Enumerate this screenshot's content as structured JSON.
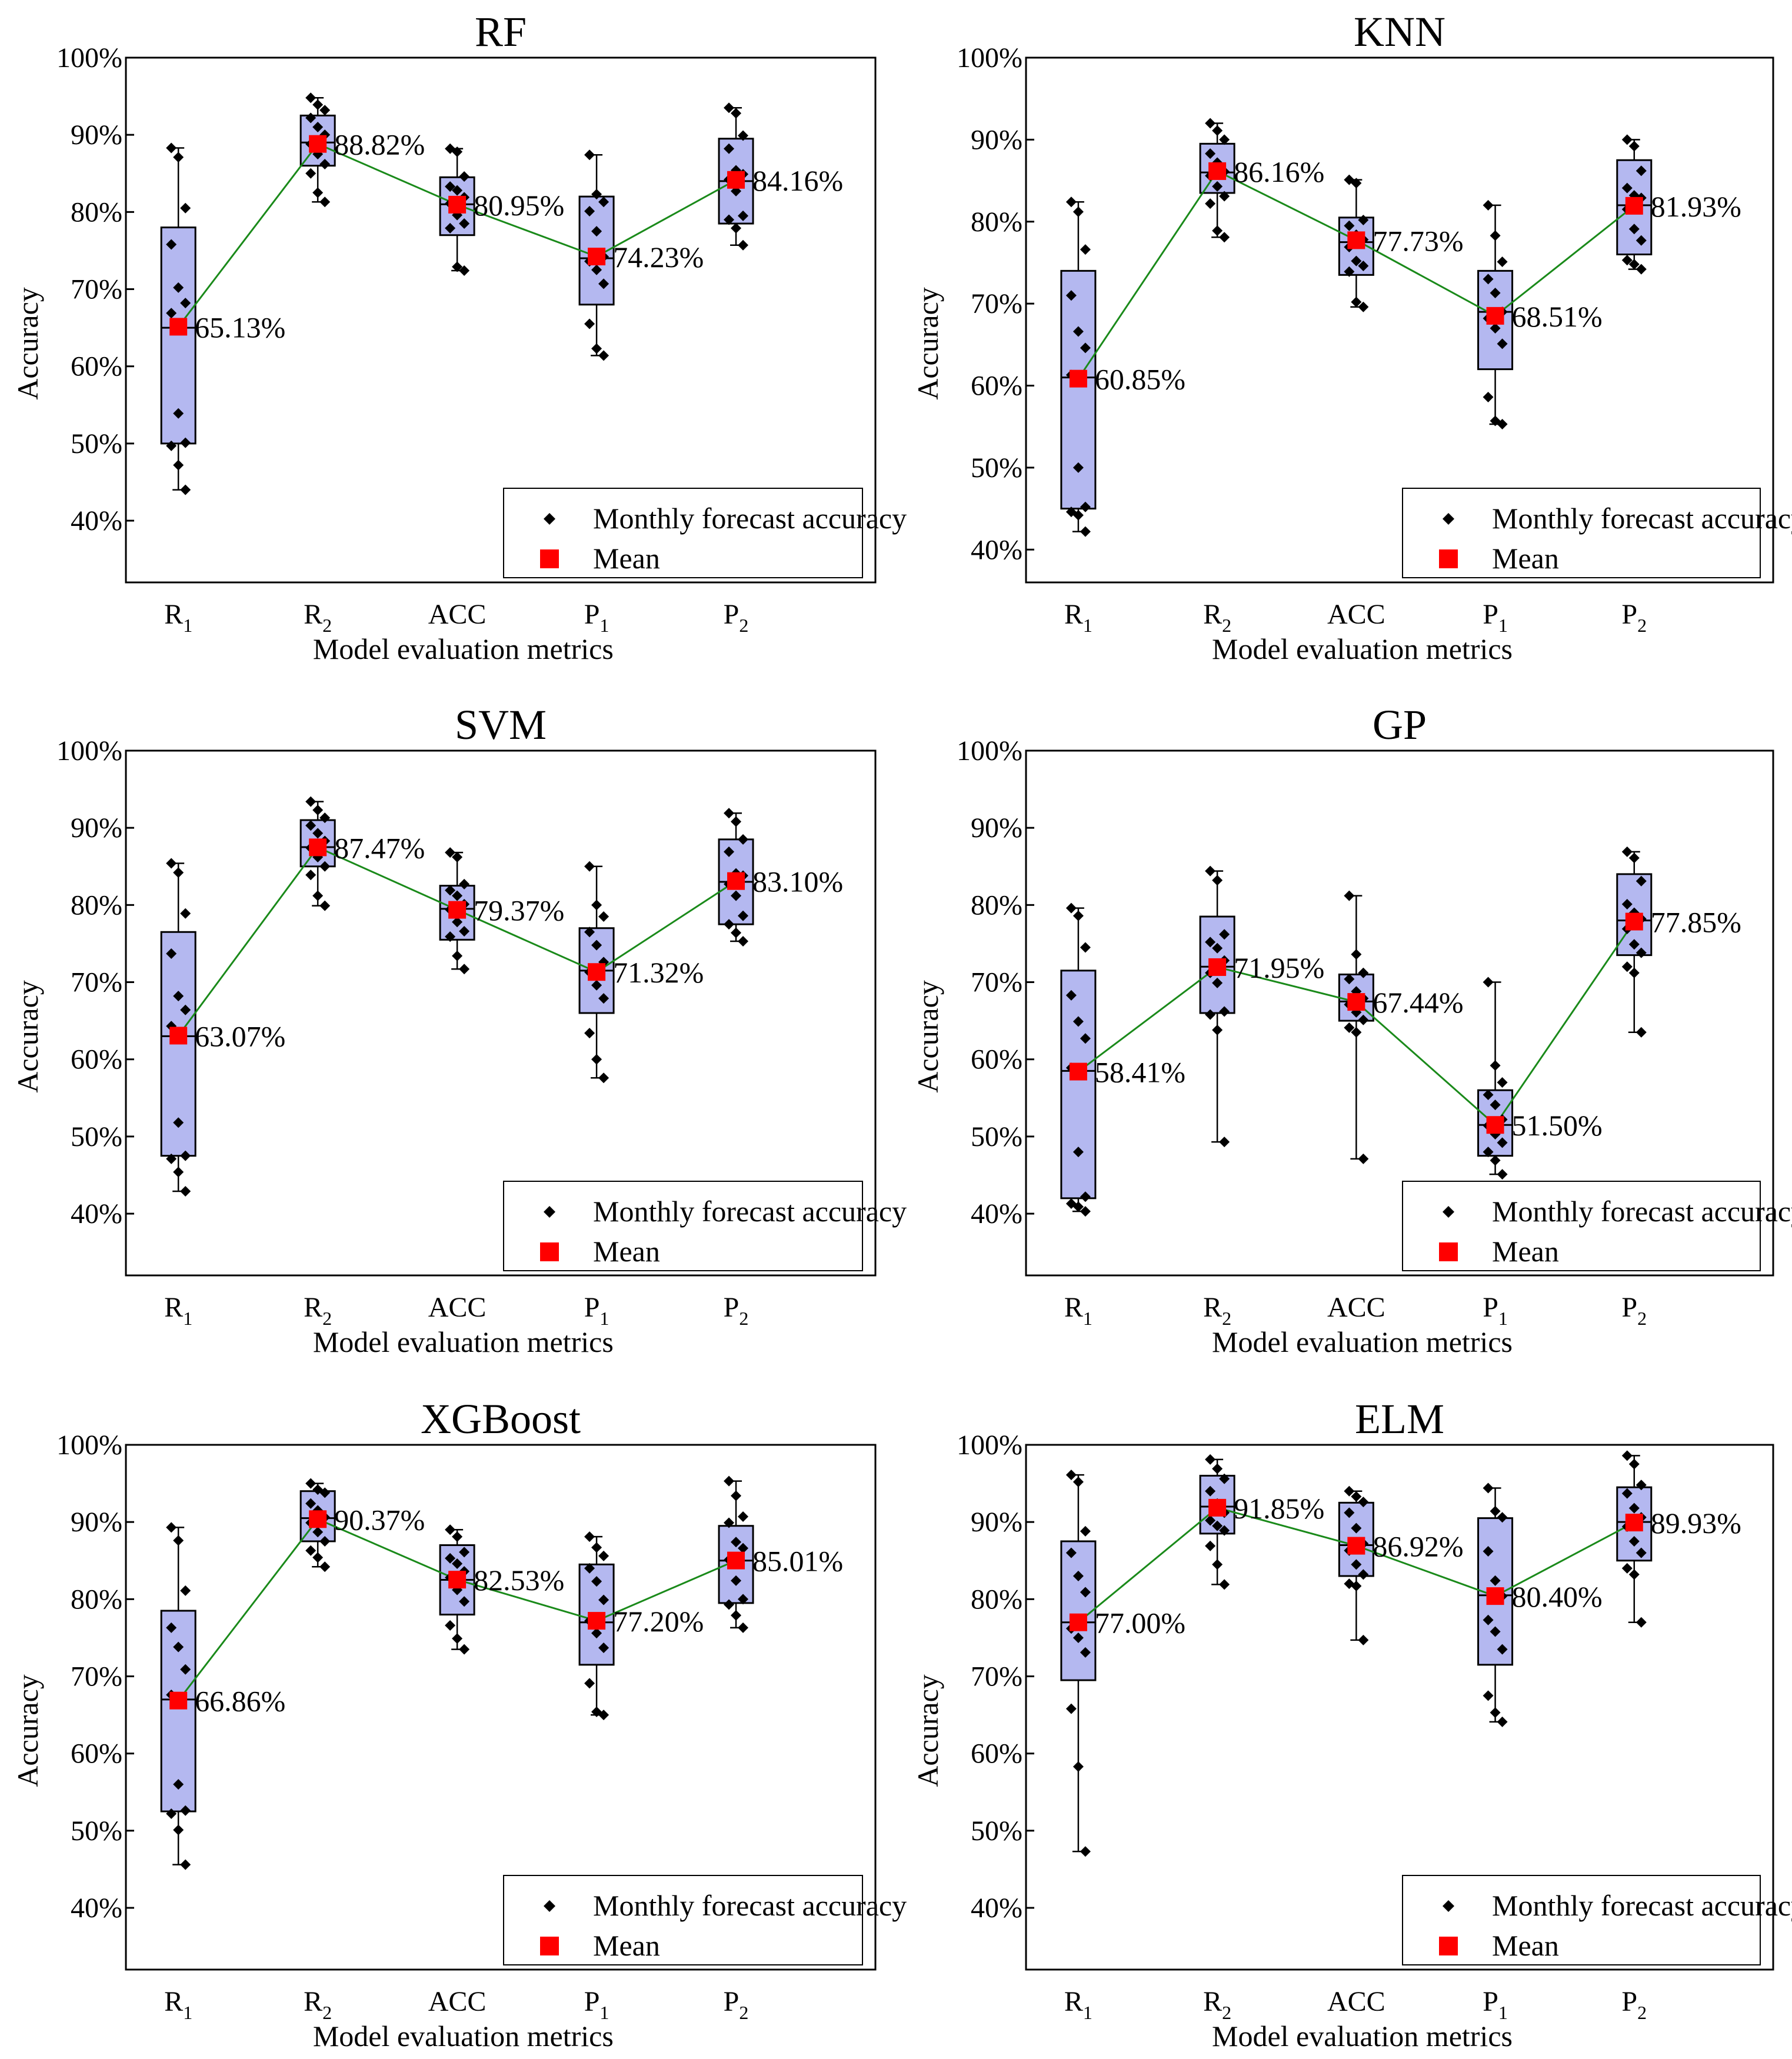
{
  "colors": {
    "box_fill": "#b4b8f0",
    "box_stroke": "#000000",
    "mean": "#ff0000",
    "line": "#1a8a1a",
    "dot": "#000000",
    "frame": "#000000"
  },
  "chart_data": [
    {
      "type": "box",
      "title": "RF",
      "xlabel": "Model evaluation metrics",
      "ylabel": "Accuracy",
      "ylim": [
        32,
        100
      ],
      "yticks": [
        "40%",
        "50%",
        "60%",
        "70%",
        "80%",
        "90%",
        "100%"
      ],
      "categories": [
        {
          "main": "R",
          "sub": "1"
        },
        {
          "main": "R",
          "sub": "2"
        },
        {
          "main": "ACC",
          "sub": ""
        },
        {
          "main": "P",
          "sub": "1"
        },
        {
          "main": "P",
          "sub": "2"
        }
      ],
      "legend": {
        "points": "Monthly forecast accuracy",
        "mean": "Mean",
        "position": "bottom-right"
      },
      "boxes": [
        {
          "q1": 50,
          "median": 65,
          "q3": 78
        },
        {
          "q1": 86,
          "median": 89,
          "q3": 92.5
        },
        {
          "q1": 77,
          "median": 81,
          "q3": 84.5
        },
        {
          "q1": 68,
          "median": 74,
          "q3": 82
        },
        {
          "q1": 78.5,
          "median": 84,
          "q3": 89.5
        }
      ],
      "means": [
        65.13,
        88.82,
        80.95,
        74.23,
        84.16
      ],
      "mean_labels": [
        "65.13%",
        "88.82%",
        "80.95%",
        "74.23%",
        "84.16%"
      ],
      "points": [
        [
          88.3,
          87.1,
          80.5,
          75.8,
          70.2,
          68.2,
          66.9,
          53.9,
          50.1,
          49.7,
          47.2,
          44.0
        ],
        [
          94.8,
          93.9,
          93.2,
          92.2,
          91.0,
          90.0,
          88.8,
          87.5,
          86.2,
          85.0,
          82.5,
          81.3
        ],
        [
          88.2,
          87.8,
          84.6,
          83.3,
          82.8,
          81.9,
          81.1,
          79.6,
          78.5,
          77.9,
          72.9,
          72.4
        ],
        [
          87.4,
          82.3,
          81.3,
          80.1,
          77.5,
          74.2,
          73.6,
          72.5,
          70.7,
          65.5,
          62.3,
          61.4
        ],
        [
          93.5,
          92.8,
          89.9,
          88.2,
          85.4,
          84.9,
          84.2,
          82.7,
          79.5,
          79.0,
          77.9,
          75.7
        ]
      ]
    },
    {
      "type": "box",
      "title": "KNN",
      "xlabel": "Model evaluation metrics",
      "ylabel": "Accuracy",
      "ylim": [
        36,
        100
      ],
      "yticks": [
        "40%",
        "50%",
        "60%",
        "70%",
        "80%",
        "90%",
        "100%"
      ],
      "categories": [
        {
          "main": "R",
          "sub": "1"
        },
        {
          "main": "R",
          "sub": "2"
        },
        {
          "main": "ACC",
          "sub": ""
        },
        {
          "main": "P",
          "sub": "1"
        },
        {
          "main": "P",
          "sub": "2"
        }
      ],
      "legend": {
        "points": "Monthly forecast accuracy",
        "mean": "Mean",
        "position": "bottom-right"
      },
      "boxes": [
        {
          "q1": 45,
          "median": 61,
          "q3": 74
        },
        {
          "q1": 83.5,
          "median": 86,
          "q3": 89.5
        },
        {
          "q1": 73.5,
          "median": 77.5,
          "q3": 80.5
        },
        {
          "q1": 62,
          "median": 69,
          "q3": 74
        },
        {
          "q1": 76,
          "median": 82,
          "q3": 87.5
        }
      ],
      "means": [
        60.85,
        86.16,
        77.73,
        68.51,
        81.93
      ],
      "mean_labels": [
        "60.85%",
        "86.16%",
        "77.73%",
        "68.51%",
        "81.93%"
      ],
      "points": [
        [
          82.4,
          81.2,
          76.6,
          71.0,
          66.6,
          64.6,
          61.3,
          50.0,
          45.2,
          44.6,
          44.2,
          42.2
        ],
        [
          92.0,
          91.1,
          90.0,
          88.3,
          87.2,
          86.1,
          85.6,
          84.3,
          83.1,
          82.2,
          78.9,
          78.1
        ],
        [
          85.1,
          84.7,
          80.2,
          79.5,
          78.4,
          77.8,
          76.9,
          75.2,
          74.6,
          73.9,
          70.2,
          69.6
        ],
        [
          82.0,
          78.3,
          75.1,
          73.0,
          71.3,
          69.0,
          68.2,
          67.0,
          65.1,
          58.6,
          55.7,
          55.3
        ],
        [
          90.0,
          89.2,
          86.2,
          84.1,
          83.2,
          82.9,
          81.5,
          79.1,
          77.7,
          75.3,
          74.8,
          74.2
        ]
      ]
    },
    {
      "type": "box",
      "title": "SVM",
      "xlabel": "Model evaluation metrics",
      "ylabel": "Accuracy",
      "ylim": [
        32,
        100
      ],
      "yticks": [
        "40%",
        "50%",
        "60%",
        "70%",
        "80%",
        "90%",
        "100%"
      ],
      "categories": [
        {
          "main": "R",
          "sub": "1"
        },
        {
          "main": "R",
          "sub": "2"
        },
        {
          "main": "ACC",
          "sub": ""
        },
        {
          "main": "P",
          "sub": "1"
        },
        {
          "main": "P",
          "sub": "2"
        }
      ],
      "legend": {
        "points": "Monthly forecast accuracy",
        "mean": "Mean",
        "position": "bottom-right"
      },
      "boxes": [
        {
          "q1": 47.5,
          "median": 63,
          "q3": 76.5
        },
        {
          "q1": 85,
          "median": 87.5,
          "q3": 91
        },
        {
          "q1": 75.5,
          "median": 79.5,
          "q3": 82.5
        },
        {
          "q1": 66,
          "median": 71.5,
          "q3": 77
        },
        {
          "q1": 77.5,
          "median": 83,
          "q3": 88.5
        }
      ],
      "means": [
        63.07,
        87.47,
        79.37,
        71.32,
        83.1
      ],
      "mean_labels": [
        "63.07%",
        "87.47%",
        "79.37%",
        "71.32%",
        "83.10%"
      ],
      "points": [
        [
          85.4,
          84.2,
          78.9,
          73.7,
          68.2,
          66.4,
          64.3,
          51.8,
          47.5,
          47.1,
          45.4,
          42.9
        ],
        [
          93.4,
          92.3,
          91.3,
          90.3,
          89.3,
          88.3,
          87.4,
          86.2,
          85.0,
          83.9,
          81.2,
          79.9
        ],
        [
          86.8,
          86.2,
          82.7,
          81.9,
          81.2,
          80.1,
          79.4,
          77.8,
          76.6,
          75.9,
          73.4,
          71.7
        ],
        [
          85.0,
          80.0,
          78.5,
          76.5,
          74.8,
          72.6,
          71.3,
          69.6,
          67.9,
          63.4,
          60.0,
          57.6
        ],
        [
          91.9,
          90.8,
          88.5,
          86.9,
          84.1,
          83.8,
          82.7,
          81.2,
          78.6,
          77.5,
          76.4,
          75.3
        ]
      ]
    },
    {
      "type": "box",
      "title": "GP",
      "xlabel": "Model evaluation metrics",
      "ylabel": "Accuracy",
      "ylim": [
        32,
        100
      ],
      "yticks": [
        "40%",
        "50%",
        "60%",
        "70%",
        "80%",
        "90%",
        "100%"
      ],
      "categories": [
        {
          "main": "R",
          "sub": "1"
        },
        {
          "main": "R",
          "sub": "2"
        },
        {
          "main": "ACC",
          "sub": ""
        },
        {
          "main": "P",
          "sub": "1"
        },
        {
          "main": "P",
          "sub": "2"
        }
      ],
      "legend": {
        "points": "Monthly forecast accuracy",
        "mean": "Mean",
        "position": "bottom-right"
      },
      "boxes": [
        {
          "q1": 42,
          "median": 58.5,
          "q3": 71.5
        },
        {
          "q1": 66,
          "median": 72,
          "q3": 78.5
        },
        {
          "q1": 65,
          "median": 67.5,
          "q3": 71
        },
        {
          "q1": 47.5,
          "median": 51.5,
          "q3": 56
        },
        {
          "q1": 73.5,
          "median": 78,
          "q3": 84
        }
      ],
      "means": [
        58.41,
        71.95,
        67.44,
        51.5,
        77.85
      ],
      "mean_labels": [
        "58.41%",
        "71.95%",
        "67.44%",
        "51.50%",
        "77.85%"
      ],
      "points": [
        [
          79.6,
          78.6,
          74.5,
          68.3,
          64.9,
          62.7,
          58.9,
          48.0,
          42.2,
          41.3,
          40.9,
          40.3
        ],
        [
          84.4,
          83.2,
          76.2,
          75.2,
          74.4,
          72.8,
          71.2,
          69.9,
          66.2,
          65.8,
          63.8,
          49.3
        ],
        [
          81.2,
          73.6,
          71.2,
          70.4,
          68.8,
          67.9,
          67.1,
          66.1,
          65.1,
          64.1,
          63.5,
          47.1
        ],
        [
          70.0,
          59.2,
          57.0,
          55.4,
          54.1,
          52.2,
          51.4,
          50.3,
          49.2,
          48.0,
          46.9,
          45.1
        ],
        [
          86.9,
          86.1,
          83.1,
          80.1,
          79.0,
          78.2,
          76.9,
          74.9,
          73.8,
          72.0,
          71.2,
          63.5
        ]
      ]
    },
    {
      "type": "box",
      "title": "XGBoost",
      "xlabel": "Model evaluation metrics",
      "ylabel": "Accuracy",
      "ylim": [
        32,
        100
      ],
      "yticks": [
        "40%",
        "50%",
        "60%",
        "70%",
        "80%",
        "90%",
        "100%"
      ],
      "categories": [
        {
          "main": "R",
          "sub": "1"
        },
        {
          "main": "R",
          "sub": "2"
        },
        {
          "main": "ACC",
          "sub": ""
        },
        {
          "main": "P",
          "sub": "1"
        },
        {
          "main": "P",
          "sub": "2"
        }
      ],
      "legend": {
        "points": "Monthly forecast accuracy",
        "mean": "Mean",
        "position": "bottom-right"
      },
      "boxes": [
        {
          "q1": 52.5,
          "median": 67,
          "q3": 78.5
        },
        {
          "q1": 87.5,
          "median": 90.5,
          "q3": 94
        },
        {
          "q1": 78,
          "median": 82.5,
          "q3": 87
        },
        {
          "q1": 71.5,
          "median": 77,
          "q3": 84.5
        },
        {
          "q1": 79.5,
          "median": 85,
          "q3": 89.5
        }
      ],
      "means": [
        66.86,
        90.37,
        82.53,
        77.2,
        85.01
      ],
      "mean_labels": [
        "66.86%",
        "90.37%",
        "82.53%",
        "77.20%",
        "85.01%"
      ],
      "points": [
        [
          89.3,
          87.6,
          81.1,
          76.3,
          73.8,
          70.9,
          67.6,
          56.0,
          52.6,
          52.2,
          50.1,
          45.6
        ],
        [
          95.0,
          94.2,
          93.8,
          92.4,
          91.5,
          90.6,
          89.9,
          88.7,
          87.5,
          86.3,
          85.4,
          84.2
        ],
        [
          89.0,
          88.1,
          86.1,
          85.3,
          84.6,
          83.6,
          82.8,
          81.2,
          79.7,
          76.6,
          74.9,
          73.5
        ],
        [
          88.1,
          86.7,
          85.6,
          84.0,
          82.3,
          79.9,
          77.2,
          75.6,
          73.7,
          69.1,
          65.4,
          65.0
        ],
        [
          95.3,
          93.4,
          90.7,
          89.9,
          87.4,
          86.6,
          85.1,
          82.4,
          80.0,
          79.3,
          77.9,
          76.3
        ]
      ]
    },
    {
      "type": "box",
      "title": "ELM",
      "xlabel": "Model evaluation metrics",
      "ylabel": "Accuracy",
      "ylim": [
        32,
        100
      ],
      "yticks": [
        "40%",
        "50%",
        "60%",
        "70%",
        "80%",
        "90%",
        "100%"
      ],
      "categories": [
        {
          "main": "R",
          "sub": "1"
        },
        {
          "main": "R",
          "sub": "2"
        },
        {
          "main": "ACC",
          "sub": ""
        },
        {
          "main": "P",
          "sub": "1"
        },
        {
          "main": "P",
          "sub": "2"
        }
      ],
      "legend": {
        "points": "Monthly forecast accuracy",
        "mean": "Mean",
        "position": "bottom-right"
      },
      "boxes": [
        {
          "q1": 69.5,
          "median": 77,
          "q3": 87.5
        },
        {
          "q1": 88.5,
          "median": 92,
          "q3": 96
        },
        {
          "q1": 83,
          "median": 87,
          "q3": 92.5
        },
        {
          "q1": 71.5,
          "median": 80.5,
          "q3": 90.5
        },
        {
          "q1": 85,
          "median": 90,
          "q3": 94.5
        }
      ],
      "means": [
        77.0,
        91.85,
        86.92,
        80.4,
        89.93
      ],
      "mean_labels": [
        "77.00%",
        "91.85%",
        "86.92%",
        "80.40%",
        "89.93%"
      ],
      "points": [
        [
          96.1,
          95.2,
          88.8,
          86.0,
          83.0,
          80.9,
          76.2,
          75.0,
          73.1,
          65.8,
          58.3,
          47.3
        ],
        [
          98.1,
          96.9,
          95.6,
          94.0,
          92.4,
          91.2,
          90.2,
          89.5,
          88.9,
          86.9,
          84.5,
          81.9
        ],
        [
          94.0,
          93.3,
          92.6,
          91.2,
          89.2,
          87.2,
          86.3,
          84.5,
          83.2,
          82.0,
          81.7,
          74.7
        ],
        [
          94.4,
          91.4,
          90.6,
          86.2,
          82.4,
          80.4,
          77.3,
          75.8,
          73.5,
          67.5,
          65.3,
          64.1
        ],
        [
          98.6,
          97.5,
          94.8,
          93.7,
          91.8,
          90.6,
          89.4,
          87.5,
          86.0,
          84.0,
          83.2,
          77.0
        ]
      ]
    }
  ]
}
